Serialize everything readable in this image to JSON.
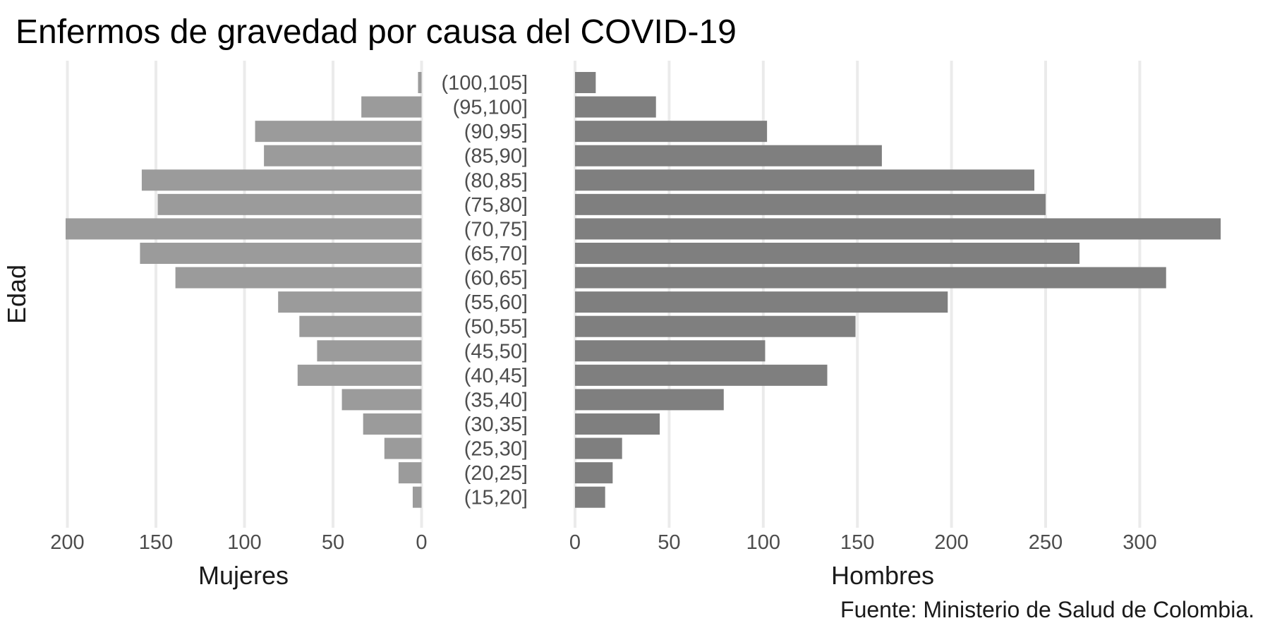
{
  "title": "Enfermos de gravedad por causa del COVID-19",
  "y_axis_label": "Edad",
  "caption": "Fuente: Ministerio de Salud de Colombia.",
  "chart_data": {
    "type": "bar",
    "subtype": "population-pyramid",
    "orientation": "horizontal",
    "grid": "vertical-major-only",
    "categories": [
      "(100,105]",
      "(95,100]",
      "(90,95]",
      "(85,90]",
      "(80,85]",
      "(75,80]",
      "(70,75]",
      "(65,70]",
      "(60,65]",
      "(55,60]",
      "(50,55]",
      "(45,50]",
      "(40,45]",
      "(35,40]",
      "(30,35]",
      "(25,30]",
      "(20,25]",
      "(15,20]"
    ],
    "series": [
      {
        "name": "Mujeres",
        "side": "left",
        "values": [
          2,
          34,
          94,
          89,
          158,
          149,
          201,
          159,
          139,
          81,
          69,
          59,
          70,
          45,
          33,
          21,
          13,
          5
        ]
      },
      {
        "name": "Hombres",
        "side": "right",
        "values": [
          11,
          43,
          102,
          163,
          244,
          250,
          343,
          268,
          314,
          198,
          149,
          101,
          134,
          79,
          45,
          25,
          20,
          16
        ]
      }
    ],
    "left_axis": {
      "label": "Mujeres",
      "ticks": [
        200,
        150,
        100,
        50,
        0
      ],
      "range": [
        0,
        213
      ]
    },
    "right_axis": {
      "label": "Hombres",
      "ticks": [
        0,
        50,
        100,
        150,
        200,
        250,
        300
      ],
      "range": [
        0,
        349
      ]
    },
    "colors": {
      "left_bar": "#9b9b9b",
      "right_bar": "#7f7f7f",
      "gridline": "#ebebeb",
      "tick_text": "#4d4d4d",
      "title_text": "#000000",
      "background": "#ffffff"
    }
  }
}
